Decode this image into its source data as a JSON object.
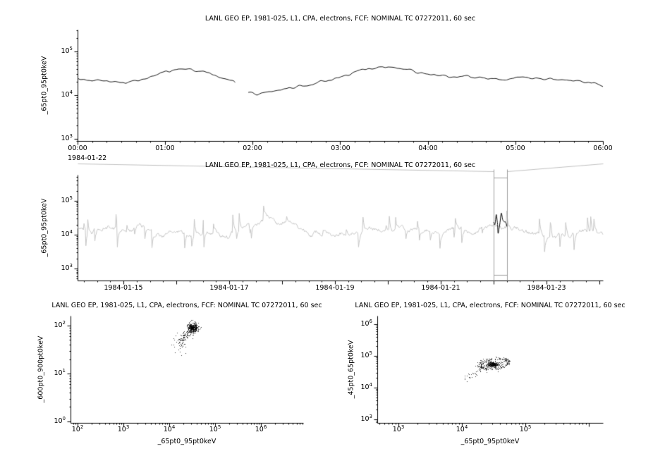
{
  "window": {
    "background": "#ffffff"
  },
  "chart_data": [
    {
      "id": "zoom-timeseries",
      "type": "line",
      "title": "LANL GEO EP, 1981-025, L1, CPA, electrons, FCF: NOMINAL TC 07272011, 60 sec",
      "ylabel": "_65pt0_95pt0keV",
      "xlabel": "",
      "x_date_label": "1984-01-22",
      "x_tick_labels": [
        "00:00",
        "01:00",
        "02:00",
        "03:00",
        "04:00",
        "05:00",
        "06:00"
      ],
      "x_tick_hours": [
        0,
        1,
        2,
        3,
        4,
        5,
        6
      ],
      "xlim_hours": [
        0,
        6
      ],
      "y_scale": "log",
      "y_tick_exponents": [
        3,
        4,
        5
      ],
      "ylim_log10": [
        2.95,
        5.5
      ],
      "line_color": "#111111",
      "gap_hours": [
        1.8,
        1.94
      ],
      "noise_seed": 3,
      "noise_amplitude_log10": 0.05,
      "series_points_hour_flux": [
        [
          0.0,
          23500
        ],
        [
          0.25,
          21500
        ],
        [
          0.45,
          19500
        ],
        [
          0.6,
          20000
        ],
        [
          0.8,
          24000
        ],
        [
          1.0,
          33000
        ],
        [
          1.15,
          40000
        ],
        [
          1.3,
          38000
        ],
        [
          1.5,
          30000
        ],
        [
          1.65,
          24500
        ],
        [
          1.78,
          21500
        ],
        [
          1.95,
          11500
        ],
        [
          2.05,
          10500
        ],
        [
          2.2,
          12000
        ],
        [
          2.4,
          14500
        ],
        [
          2.6,
          17000
        ],
        [
          2.8,
          20500
        ],
        [
          3.0,
          26000
        ],
        [
          3.2,
          35000
        ],
        [
          3.45,
          44000
        ],
        [
          3.6,
          42000
        ],
        [
          3.75,
          38500
        ],
        [
          3.95,
          31000
        ],
        [
          4.1,
          28000
        ],
        [
          4.3,
          26000
        ],
        [
          4.5,
          25500
        ],
        [
          4.7,
          24500
        ],
        [
          4.9,
          23500
        ],
        [
          5.1,
          24500
        ],
        [
          5.3,
          24000
        ],
        [
          5.5,
          22500
        ],
        [
          5.7,
          21500
        ],
        [
          5.85,
          20000
        ],
        [
          6.0,
          17500
        ]
      ]
    },
    {
      "id": "context-timeseries",
      "type": "line",
      "title": "LANL GEO EP, 1981-025, L1, CPA, electrons, FCF: NOMINAL TC 07272011, 60 sec",
      "ylabel": "_65pt0_95pt0keV",
      "xlabel": "",
      "x_tick_labels": [
        "1984-01-15",
        "1984-01-17",
        "1984-01-19",
        "1984-01-21",
        "1984-01-23"
      ],
      "x_tick_days_from_1984_01_14": [
        1,
        3,
        5,
        7,
        9
      ],
      "x_day_tick_step": 1,
      "xlim_days_from_1984_01_14": [
        0.1333,
        10.0667
      ],
      "y_scale": "log",
      "y_tick_exponents": [
        3,
        4,
        5
      ],
      "ylim_log10": [
        2.646,
        5.77
      ],
      "line_color": "#c6c6c6",
      "highlight_color": "#000000",
      "selector_color": "#9e9e9e",
      "connector_color": "#c0c0c0",
      "selection_days_from_1984_01_14": [
        8.0,
        8.25
      ],
      "generator": {
        "seed": 42,
        "n_points": 820,
        "base_log10": 4.12,
        "wave_amplitude_log10": 0.08,
        "walk_step_log10": 0.1,
        "walk_decay": 0.97,
        "spike_probability": 0.06,
        "spike_max_log10": 0.95,
        "spike_decay": 0.55,
        "clamp_log10": [
          2.8,
          5.55
        ]
      }
    },
    {
      "id": "scatter-600-900-vs-65-95",
      "type": "scatter",
      "title": "LANL GEO EP, 1981-025, L1, CPA, electrons, FCF: NOMINAL TC 07272011, 60 sec",
      "xlabel": "_65pt0_95pt0keV",
      "ylabel": "_600pt0_900pt0keV",
      "x_scale": "log",
      "y_scale": "log",
      "x_tick_exponents": [
        2,
        3,
        4,
        5,
        6
      ],
      "y_tick_exponents": [
        0,
        1,
        2
      ],
      "xlim_log10": [
        1.846,
        6.923
      ],
      "ylim_log10": [
        -0.03,
        2.206
      ],
      "point_color": "#000000",
      "seed": 7,
      "clusters": [
        {
          "kind": "gauss",
          "n": 300,
          "cx": 4.52,
          "cy": 1.96,
          "sx": 0.055,
          "sy": 0.05
        },
        {
          "kind": "line",
          "n": 110,
          "x0": 4.26,
          "y0": 1.68,
          "x1": 4.5,
          "y1": 1.93,
          "jx": 0.045,
          "jy": 0.055
        },
        {
          "kind": "gauss",
          "n": 28,
          "cx": 4.22,
          "cy": 1.55,
          "sx": 0.08,
          "sy": 0.1
        }
      ]
    },
    {
      "id": "scatter-45-65-vs-65-95",
      "type": "scatter",
      "title": "LANL GEO EP, 1981-025, L1, CPA, electrons, FCF: NOMINAL TC 07272011, 60 sec",
      "xlabel": "_65pt0_95pt0keV",
      "ylabel": "_45pt0_65pt0keV",
      "x_scale": "log",
      "y_scale": "log",
      "x_tick_exponents": [
        3,
        4,
        5
      ],
      "y_tick_exponents": [
        3,
        4,
        5,
        6
      ],
      "xlim_log10": [
        2.667,
        6.222
      ],
      "ylim_log10": [
        2.889,
        6.267
      ],
      "point_color": "#000000",
      "seed": 13,
      "clusters": [
        {
          "kind": "gauss",
          "n": 240,
          "cx": 4.47,
          "cy": 4.74,
          "sx": 0.05,
          "sy": 0.04
        },
        {
          "kind": "ring",
          "n": 170,
          "cx": 4.5,
          "cy": 4.76,
          "rx": 0.24,
          "ry": 0.15,
          "rot": 0.45,
          "jx": 0.02,
          "jy": 0.02
        },
        {
          "kind": "gauss",
          "n": 80,
          "cx": 4.5,
          "cy": 4.73,
          "sx": 0.11,
          "sy": 0.09
        },
        {
          "kind": "line",
          "n": 30,
          "x0": 4.06,
          "y0": 4.28,
          "x1": 4.32,
          "y1": 4.6,
          "jx": 0.03,
          "jy": 0.04
        }
      ]
    }
  ]
}
